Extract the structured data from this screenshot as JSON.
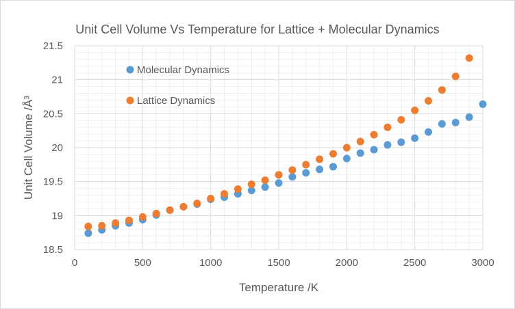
{
  "chart_data": {
    "type": "scatter",
    "title": "Unit Cell Volume Vs Temperature for Lattice + Molecular Dynamics",
    "xlabel": "Temperature /K",
    "ylabel": "Unit Cell Volume /Å³",
    "xlim": [
      0,
      3000
    ],
    "ylim": [
      18.5,
      21.5
    ],
    "xticks": [
      "0",
      "500",
      "1000",
      "1500",
      "2000",
      "2500",
      "3000"
    ],
    "yticks": [
      "18.5",
      "19",
      "19.5",
      "20",
      "20.5",
      "21",
      "21.5"
    ],
    "grid": true,
    "legend_position": "top-left inside",
    "series": [
      {
        "name": "Molecular Dynamics",
        "color": "#5b9bd5",
        "x": [
          100,
          200,
          300,
          400,
          500,
          600,
          700,
          800,
          900,
          1000,
          1100,
          1200,
          1300,
          1400,
          1500,
          1600,
          1700,
          1800,
          1900,
          2000,
          2100,
          2200,
          2300,
          2400,
          2500,
          2600,
          2700,
          2800,
          2900,
          3000
        ],
        "y": [
          18.74,
          18.79,
          18.85,
          18.89,
          18.94,
          19.01,
          19.08,
          19.13,
          19.17,
          19.24,
          19.27,
          19.32,
          19.37,
          19.42,
          19.48,
          19.57,
          19.63,
          19.68,
          19.72,
          19.84,
          19.92,
          19.97,
          20.04,
          20.08,
          20.14,
          20.23,
          20.35,
          20.37,
          20.45,
          20.64
        ]
      },
      {
        "name": "Lattice Dynamics",
        "color": "#ed7d31",
        "x": [
          100,
          200,
          300,
          400,
          500,
          600,
          700,
          800,
          900,
          1000,
          1100,
          1200,
          1300,
          1400,
          1500,
          1600,
          1700,
          1800,
          1900,
          2000,
          2100,
          2200,
          2300,
          2400,
          2500,
          2600,
          2700,
          2800,
          2900
        ],
        "y": [
          18.84,
          18.85,
          18.89,
          18.93,
          18.98,
          19.03,
          19.08,
          19.13,
          19.18,
          19.25,
          19.32,
          19.39,
          19.46,
          19.52,
          19.6,
          19.67,
          19.75,
          19.83,
          19.91,
          20.0,
          20.09,
          20.19,
          20.3,
          20.41,
          20.55,
          20.69,
          20.85,
          21.05,
          21.32
        ]
      }
    ]
  }
}
